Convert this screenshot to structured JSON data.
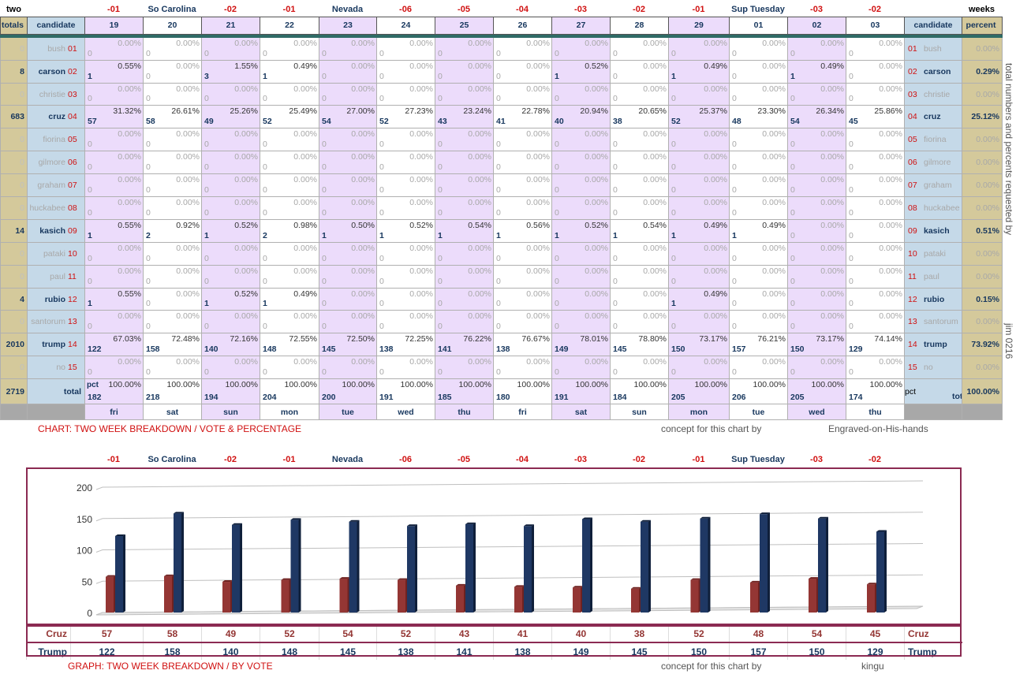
{
  "corner_left": "two",
  "corner_right": "weeks",
  "events": [
    {
      "text": "-01",
      "kind": "num"
    },
    {
      "text": "So Carolina",
      "kind": "name"
    },
    {
      "text": "-02",
      "kind": "num"
    },
    {
      "text": "-01",
      "kind": "num"
    },
    {
      "text": "Nevada",
      "kind": "name"
    },
    {
      "text": "-06",
      "kind": "num"
    },
    {
      "text": "-05",
      "kind": "num"
    },
    {
      "text": "-04",
      "kind": "num"
    },
    {
      "text": "-03",
      "kind": "num"
    },
    {
      "text": "-02",
      "kind": "num"
    },
    {
      "text": "-01",
      "kind": "num"
    },
    {
      "text": "Sup Tuesday",
      "kind": "name"
    },
    {
      "text": "-03",
      "kind": "num"
    },
    {
      "text": "-02",
      "kind": "num"
    }
  ],
  "table": {
    "header_totals": "totals",
    "header_candidate": "candidate",
    "header_percent": "percent",
    "dates": [
      "19",
      "20",
      "21",
      "22",
      "23",
      "24",
      "25",
      "26",
      "27",
      "28",
      "29",
      "01",
      "02",
      "03"
    ],
    "days": [
      "fri",
      "sat",
      "sun",
      "mon",
      "tue",
      "wed",
      "thu",
      "fri",
      "sat",
      "sun",
      "mon",
      "tue",
      "wed",
      "thu"
    ],
    "total_label": "total",
    "pct_label": "pct",
    "grand_total": "2719",
    "grand_percent": "100.00%",
    "day_totals": [
      182,
      218,
      194,
      204,
      200,
      191,
      185,
      180,
      191,
      184,
      205,
      206,
      205,
      174
    ],
    "day_total_pct": "100.00%",
    "candidates": [
      {
        "name": "bush",
        "idx": "01",
        "total": "0",
        "percent": "0.00%",
        "votes": [
          0,
          0,
          0,
          0,
          0,
          0,
          0,
          0,
          0,
          0,
          0,
          0,
          0,
          0
        ],
        "pcts": [
          "0.00%",
          "0.00%",
          "0.00%",
          "0.00%",
          "0.00%",
          "0.00%",
          "0.00%",
          "0.00%",
          "0.00%",
          "0.00%",
          "0.00%",
          "0.00%",
          "0.00%",
          "0.00%"
        ]
      },
      {
        "name": "carson",
        "idx": "02",
        "total": "8",
        "percent": "0.29%",
        "votes": [
          1,
          0,
          3,
          1,
          0,
          0,
          0,
          0,
          1,
          0,
          1,
          0,
          1,
          0
        ],
        "pcts": [
          "0.55%",
          "0.00%",
          "1.55%",
          "0.49%",
          "0.00%",
          "0.00%",
          "0.00%",
          "0.00%",
          "0.52%",
          "0.00%",
          "0.49%",
          "0.00%",
          "0.49%",
          "0.00%"
        ]
      },
      {
        "name": "christie",
        "idx": "03",
        "total": "0",
        "percent": "0.00%",
        "votes": [
          0,
          0,
          0,
          0,
          0,
          0,
          0,
          0,
          0,
          0,
          0,
          0,
          0,
          0
        ],
        "pcts": [
          "0.00%",
          "0.00%",
          "0.00%",
          "0.00%",
          "0.00%",
          "0.00%",
          "0.00%",
          "0.00%",
          "0.00%",
          "0.00%",
          "0.00%",
          "0.00%",
          "0.00%",
          "0.00%"
        ]
      },
      {
        "name": "cruz",
        "idx": "04",
        "total": "683",
        "percent": "25.12%",
        "votes": [
          57,
          58,
          49,
          52,
          54,
          52,
          43,
          41,
          40,
          38,
          52,
          48,
          54,
          45
        ],
        "pcts": [
          "31.32%",
          "26.61%",
          "25.26%",
          "25.49%",
          "27.00%",
          "27.23%",
          "23.24%",
          "22.78%",
          "20.94%",
          "20.65%",
          "25.37%",
          "23.30%",
          "26.34%",
          "25.86%"
        ]
      },
      {
        "name": "fiorina",
        "idx": "05",
        "total": "0",
        "percent": "0.00%",
        "votes": [
          0,
          0,
          0,
          0,
          0,
          0,
          0,
          0,
          0,
          0,
          0,
          0,
          0,
          0
        ],
        "pcts": [
          "0.00%",
          "0.00%",
          "0.00%",
          "0.00%",
          "0.00%",
          "0.00%",
          "0.00%",
          "0.00%",
          "0.00%",
          "0.00%",
          "0.00%",
          "0.00%",
          "0.00%",
          "0.00%"
        ]
      },
      {
        "name": "gilmore",
        "idx": "06",
        "total": "0",
        "percent": "0.00%",
        "votes": [
          0,
          0,
          0,
          0,
          0,
          0,
          0,
          0,
          0,
          0,
          0,
          0,
          0,
          0
        ],
        "pcts": [
          "0.00%",
          "0.00%",
          "0.00%",
          "0.00%",
          "0.00%",
          "0.00%",
          "0.00%",
          "0.00%",
          "0.00%",
          "0.00%",
          "0.00%",
          "0.00%",
          "0.00%",
          "0.00%"
        ]
      },
      {
        "name": "graham",
        "idx": "07",
        "total": "0",
        "percent": "0.00%",
        "votes": [
          0,
          0,
          0,
          0,
          0,
          0,
          0,
          0,
          0,
          0,
          0,
          0,
          0,
          0
        ],
        "pcts": [
          "0.00%",
          "0.00%",
          "0.00%",
          "0.00%",
          "0.00%",
          "0.00%",
          "0.00%",
          "0.00%",
          "0.00%",
          "0.00%",
          "0.00%",
          "0.00%",
          "0.00%",
          "0.00%"
        ]
      },
      {
        "name": "huckabee",
        "idx": "08",
        "total": "0",
        "percent": "0.00%",
        "votes": [
          0,
          0,
          0,
          0,
          0,
          0,
          0,
          0,
          0,
          0,
          0,
          0,
          0,
          0
        ],
        "pcts": [
          "0.00%",
          "0.00%",
          "0.00%",
          "0.00%",
          "0.00%",
          "0.00%",
          "0.00%",
          "0.00%",
          "0.00%",
          "0.00%",
          "0.00%",
          "0.00%",
          "0.00%",
          "0.00%"
        ]
      },
      {
        "name": "kasich",
        "idx": "09",
        "total": "14",
        "percent": "0.51%",
        "votes": [
          1,
          2,
          1,
          2,
          1,
          1,
          1,
          1,
          1,
          1,
          1,
          1,
          0,
          0
        ],
        "pcts": [
          "0.55%",
          "0.92%",
          "0.52%",
          "0.98%",
          "0.50%",
          "0.52%",
          "0.54%",
          "0.56%",
          "0.52%",
          "0.54%",
          "0.49%",
          "0.49%",
          "0.00%",
          "0.00%"
        ]
      },
      {
        "name": "pataki",
        "idx": "10",
        "total": "0",
        "percent": "0.00%",
        "votes": [
          0,
          0,
          0,
          0,
          0,
          0,
          0,
          0,
          0,
          0,
          0,
          0,
          0,
          0
        ],
        "pcts": [
          "0.00%",
          "0.00%",
          "0.00%",
          "0.00%",
          "0.00%",
          "0.00%",
          "0.00%",
          "0.00%",
          "0.00%",
          "0.00%",
          "0.00%",
          "0.00%",
          "0.00%",
          "0.00%"
        ]
      },
      {
        "name": "paul",
        "idx": "11",
        "total": "0",
        "percent": "0.00%",
        "votes": [
          0,
          0,
          0,
          0,
          0,
          0,
          0,
          0,
          0,
          0,
          0,
          0,
          0,
          0
        ],
        "pcts": [
          "0.00%",
          "0.00%",
          "0.00%",
          "0.00%",
          "0.00%",
          "0.00%",
          "0.00%",
          "0.00%",
          "0.00%",
          "0.00%",
          "0.00%",
          "0.00%",
          "0.00%",
          "0.00%"
        ]
      },
      {
        "name": "rubio",
        "idx": "12",
        "total": "4",
        "percent": "0.15%",
        "votes": [
          1,
          0,
          1,
          1,
          0,
          0,
          0,
          0,
          0,
          0,
          1,
          0,
          0,
          0
        ],
        "pcts": [
          "0.55%",
          "0.00%",
          "0.52%",
          "0.49%",
          "0.00%",
          "0.00%",
          "0.00%",
          "0.00%",
          "0.00%",
          "0.00%",
          "0.49%",
          "0.00%",
          "0.00%",
          "0.00%"
        ]
      },
      {
        "name": "santorum",
        "idx": "13",
        "total": "0",
        "percent": "0.00%",
        "votes": [
          0,
          0,
          0,
          0,
          0,
          0,
          0,
          0,
          0,
          0,
          0,
          0,
          0,
          0
        ],
        "pcts": [
          "0.00%",
          "0.00%",
          "0.00%",
          "0.00%",
          "0.00%",
          "0.00%",
          "0.00%",
          "0.00%",
          "0.00%",
          "0.00%",
          "0.00%",
          "0.00%",
          "0.00%",
          "0.00%"
        ]
      },
      {
        "name": "trump",
        "idx": "14",
        "total": "2010",
        "percent": "73.92%",
        "votes": [
          122,
          158,
          140,
          148,
          145,
          138,
          141,
          138,
          149,
          145,
          150,
          157,
          150,
          129
        ],
        "pcts": [
          "67.03%",
          "72.48%",
          "72.16%",
          "72.55%",
          "72.50%",
          "72.25%",
          "76.22%",
          "76.67%",
          "78.01%",
          "78.80%",
          "73.17%",
          "76.21%",
          "73.17%",
          "74.14%"
        ]
      },
      {
        "name": "no",
        "idx": "15",
        "total": "0",
        "percent": "0.00%",
        "votes": [
          0,
          0,
          0,
          0,
          0,
          0,
          0,
          0,
          0,
          0,
          0,
          0,
          0,
          0
        ],
        "pcts": [
          "0.00%",
          "0.00%",
          "0.00%",
          "0.00%",
          "0.00%",
          "0.00%",
          "0.00%",
          "0.00%",
          "0.00%",
          "0.00%",
          "0.00%",
          "0.00%",
          "0.00%",
          "0.00%"
        ]
      }
    ]
  },
  "side_text_1": "total numbers and percents requested by",
  "side_text_2": "jim 0216",
  "caption_table": "CHART: TWO WEEK BREAKDOWN / VOTE & PERCENTAGE",
  "concept_text": "concept for this chart by",
  "credit_table": "Engraved-on-His-hands",
  "caption_graph": "GRAPH: TWO WEEK BREAKDOWN / BY VOTE",
  "credit_graph": "kingu",
  "chart_data": {
    "type": "bar",
    "categories": [
      "19",
      "20",
      "21",
      "22",
      "23",
      "24",
      "25",
      "26",
      "27",
      "28",
      "29",
      "01",
      "02",
      "03"
    ],
    "series": [
      {
        "name": "Cruz",
        "values": [
          57,
          58,
          49,
          52,
          54,
          52,
          43,
          41,
          40,
          38,
          52,
          48,
          54,
          45
        ],
        "color": "#943634"
      },
      {
        "name": "Trump",
        "values": [
          122,
          158,
          140,
          148,
          145,
          138,
          141,
          138,
          149,
          145,
          150,
          157,
          150,
          129
        ],
        "color": "#1f3864"
      }
    ],
    "ylim": [
      0,
      200
    ],
    "yticks": [
      "0",
      "50",
      "100",
      "150",
      "200"
    ],
    "grid": true
  }
}
